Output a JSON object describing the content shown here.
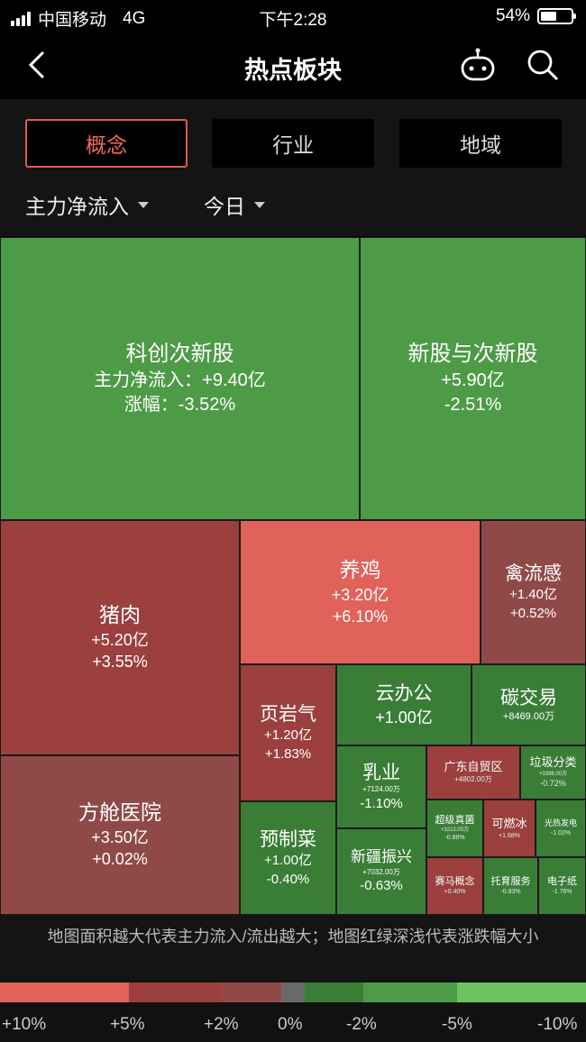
{
  "status": {
    "carrier": "中国移动",
    "network": "4G",
    "time": "下午2:28",
    "battery": "54%",
    "battery_level": 0.54
  },
  "nav": {
    "title": "热点板块",
    "icons": [
      "back-icon",
      "robot-icon",
      "search-icon"
    ]
  },
  "tabs": [
    {
      "label": "概念",
      "active": true
    },
    {
      "label": "行业",
      "active": false
    },
    {
      "label": "地域",
      "active": false
    }
  ],
  "filters": {
    "metric": "主力净流入",
    "period": "今日"
  },
  "cells": {
    "c1": {
      "name": "科创次新股",
      "flow": "主力净流入：+9.40亿",
      "change": "涨幅：-3.52%"
    },
    "c2": {
      "name": "新股与次新股",
      "flow": "+5.90亿",
      "change": "-2.51%"
    },
    "c3": {
      "name": "猪肉",
      "flow": "+5.20亿",
      "change": "+3.55%"
    },
    "c4": {
      "name": "养鸡",
      "flow": "+3.20亿",
      "change": "+6.10%"
    },
    "c5": {
      "name": "禽流感",
      "flow": "+1.40亿",
      "change": "+0.52%"
    },
    "c6": {
      "name": "方舱医院",
      "flow": "+3.50亿",
      "change": "+0.02%"
    },
    "c7": {
      "name": "页岩气",
      "flow": "+1.20亿",
      "change": "+1.83%"
    },
    "c8": {
      "name": "云办公",
      "flow": "+1.00亿",
      "change": ""
    },
    "c9": {
      "name": "碳交易",
      "flow": "+8469.00万",
      "change": ""
    },
    "c10": {
      "name": "乳业",
      "flow": "+7124.00万",
      "change": "-1.10%"
    },
    "c11": {
      "name": "广东自贸区",
      "flow": "+4802.00万",
      "change": ""
    },
    "c12": {
      "name": "垃圾分类",
      "flow": "+3398.00万",
      "change": "-0.72%"
    },
    "c13": {
      "name": "预制菜",
      "flow": "+1.00亿",
      "change": "-0.40%"
    },
    "c14": {
      "name": "新疆振兴",
      "flow": "+7032.00万",
      "change": "-0.63%"
    },
    "c15": {
      "name": "超级真菌",
      "flow": "+3213.00万",
      "change": "-0.88%"
    },
    "c16": {
      "name": "可燃冰",
      "flow": "",
      "change": "+1.68%"
    },
    "c17": {
      "name": "光热发电",
      "flow": "",
      "change": "-1.02%"
    },
    "c18": {
      "name": "赛马概念",
      "flow": "",
      "change": "+0.40%"
    },
    "c19": {
      "name": "托育服务",
      "flow": "",
      "change": "-0.83%"
    },
    "c20": {
      "name": "电子纸",
      "flow": "",
      "change": "-1.76%"
    }
  },
  "note": "地图面积越大代表主力流入/流出越大；地图红绿深浅代表涨跌幅大小",
  "scale": {
    "colors": [
      "#e0625a",
      "#9b3f3f",
      "#8f4a48",
      "#6a6a6a",
      "#3a7d37",
      "#4e9b47",
      "#6cc45f"
    ],
    "labels": [
      "+10%",
      "+5%",
      "+2%",
      "0%",
      "-2%",
      "-5%",
      "-10%"
    ]
  }
}
